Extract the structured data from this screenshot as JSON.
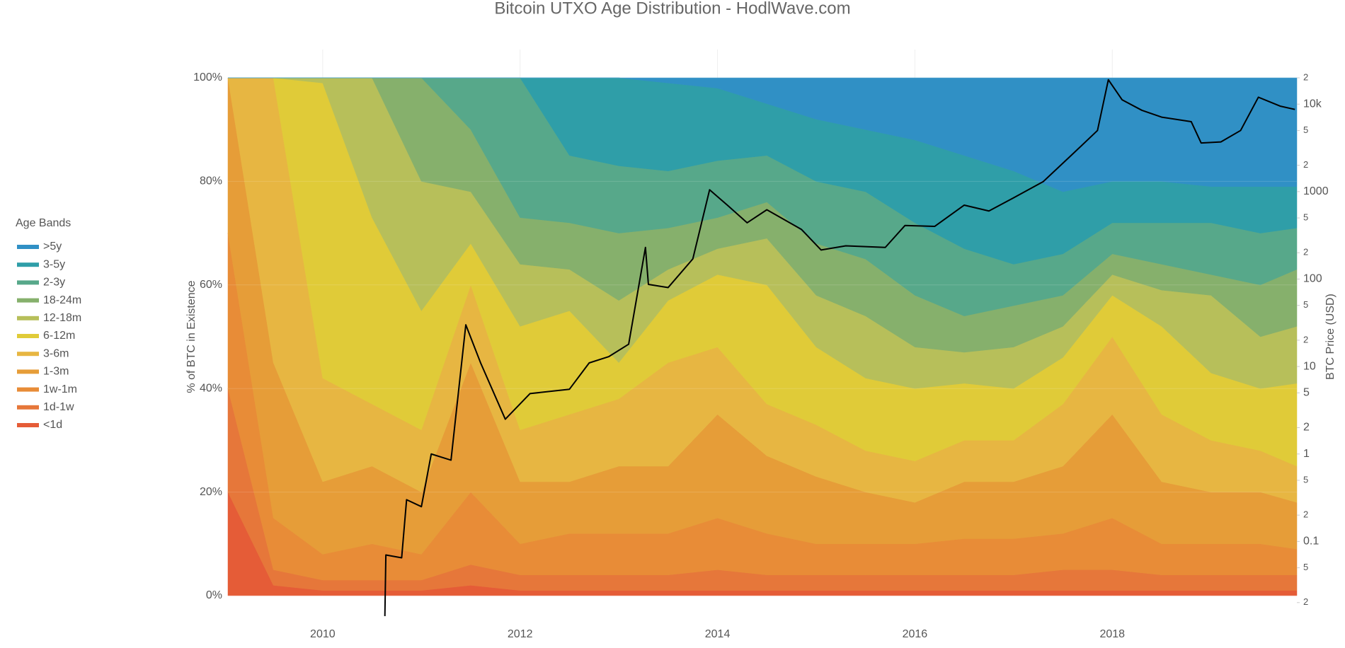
{
  "chart_data": {
    "type": "stacked-area",
    "title": "Bitcoin UTXO Age Distribution - HodlWave.com",
    "ylabel": "% of BTC in Existence",
    "y2label": "BTC Price (USD)",
    "legend_title": "Age Bands",
    "legend": "left",
    "grid": true,
    "x": [
      2009.04,
      2009.5,
      2010.0,
      2010.5,
      2011.0,
      2011.5,
      2012.0,
      2012.5,
      2013.0,
      2013.5,
      2014.0,
      2014.5,
      2015.0,
      2015.5,
      2016.0,
      2016.5,
      2017.0,
      2017.5,
      2018.0,
      2018.5,
      2019.0,
      2019.5,
      2019.87
    ],
    "xlim": [
      2009.04,
      2019.87
    ],
    "xticks": [
      2010,
      2012,
      2014,
      2016,
      2018
    ],
    "ylim": [
      0,
      100
    ],
    "yticks": [
      {
        "value": 0,
        "label": "0%"
      },
      {
        "value": 20,
        "label": "20%"
      },
      {
        "value": 40,
        "label": "40%"
      },
      {
        "value": 60,
        "label": "60%"
      },
      {
        "value": 80,
        "label": "80%"
      },
      {
        "value": 100,
        "label": "100%"
      }
    ],
    "y2log": true,
    "y2lim": [
      0.024,
      20000
    ],
    "y2ticks": [
      {
        "value": 0.02,
        "label": "2"
      },
      {
        "value": 0.05,
        "label": "5"
      },
      0.1,
      {
        "value": 0.2,
        "label": "2"
      },
      {
        "value": 0.5,
        "label": "5"
      },
      1,
      2,
      5,
      10,
      {
        "value": 20,
        "label": "2"
      },
      {
        "value": 50,
        "label": "5"
      },
      100,
      {
        "value": 200,
        "label": "2"
      },
      {
        "value": 500,
        "label": "5"
      },
      1000,
      {
        "value": 2000,
        "label": "2"
      },
      {
        "value": 5000,
        "label": "5"
      },
      {
        "value": 10000,
        "label": "10k"
      },
      {
        "value": 20000,
        "label": "2"
      }
    ],
    "series": [
      {
        "name": "<1d",
        "type": "area",
        "color": "#e55c37",
        "values": [
          20,
          2,
          1,
          1,
          1,
          2,
          1,
          1,
          1,
          1,
          1,
          1,
          1,
          1,
          1,
          1,
          1,
          1,
          1,
          1,
          1,
          1,
          1
        ]
      },
      {
        "name": "1d-1w",
        "type": "area",
        "color": "#e6773a",
        "values": [
          20,
          3,
          2,
          2,
          2,
          4,
          3,
          3,
          3,
          3,
          4,
          3,
          3,
          3,
          3,
          3,
          3,
          4,
          4,
          3,
          3,
          3,
          3
        ]
      },
      {
        "name": "1w-1m",
        "type": "area",
        "color": "#e88c37",
        "values": [
          30,
          10,
          5,
          7,
          5,
          14,
          6,
          8,
          8,
          8,
          10,
          8,
          6,
          6,
          6,
          7,
          7,
          7,
          10,
          6,
          6,
          6,
          5
        ]
      },
      {
        "name": "1-3m",
        "type": "area",
        "color": "#e69d38",
        "values": [
          30,
          30,
          14,
          15,
          12,
          25,
          12,
          10,
          13,
          13,
          20,
          15,
          13,
          10,
          8,
          11,
          11,
          13,
          20,
          12,
          10,
          10,
          9
        ]
      },
      {
        "name": "3-6m",
        "type": "area",
        "color": "#e7b642",
        "values": [
          0,
          55,
          20,
          12,
          12,
          15,
          10,
          13,
          13,
          20,
          13,
          10,
          10,
          8,
          8,
          8,
          8,
          12,
          15,
          13,
          10,
          8,
          7
        ]
      },
      {
        "name": "6-12m",
        "type": "area",
        "color": "#e0cb38",
        "values": [
          0,
          0,
          57,
          36,
          23,
          8,
          20,
          20,
          7,
          12,
          14,
          23,
          15,
          14,
          14,
          11,
          10,
          9,
          8,
          17,
          13,
          12,
          16
        ]
      },
      {
        "name": "12-18m",
        "type": "area",
        "color": "#b7bf5a",
        "values": [
          0,
          0,
          1,
          27,
          25,
          10,
          12,
          8,
          12,
          6,
          5,
          9,
          10,
          12,
          8,
          6,
          8,
          6,
          4,
          7,
          15,
          10,
          11
        ]
      },
      {
        "name": "18-24m",
        "type": "area",
        "color": "#86b06c",
        "values": [
          0,
          0,
          0,
          0,
          20,
          12,
          9,
          9,
          13,
          8,
          6,
          7,
          10,
          11,
          10,
          7,
          8,
          6,
          4,
          5,
          4,
          10,
          11
        ]
      },
      {
        "name": "2-3y",
        "type": "area",
        "color": "#57a88a",
        "values": [
          0,
          0,
          0,
          0,
          0,
          10,
          27,
          13,
          13,
          11,
          11,
          9,
          12,
          13,
          14,
          13,
          8,
          8,
          6,
          8,
          10,
          10,
          8
        ]
      },
      {
        "name": "3-5y",
        "type": "area",
        "color": "#2f9ea8",
        "values": [
          0,
          0,
          0,
          0,
          0,
          0,
          0,
          15,
          17,
          17,
          14,
          10,
          12,
          12,
          16,
          18,
          18,
          12,
          8,
          8,
          7,
          9,
          8
        ]
      },
      {
        "name": ">5y",
        "type": "area",
        "color": "#3090c5",
        "values": [
          0,
          0,
          0,
          0,
          0,
          0,
          0,
          0,
          0,
          1,
          2,
          5,
          8,
          10,
          12,
          15,
          18,
          22,
          20,
          20,
          21,
          21,
          21
        ]
      },
      {
        "type": "line",
        "axis": "y2",
        "color": "#000000",
        "x": [
          2010.63,
          2010.64,
          2010.8,
          2010.85,
          2011.0,
          2011.1,
          2011.3,
          2011.45,
          2011.6,
          2011.85,
          2012.1,
          2012.5,
          2012.7,
          2012.9,
          2013.1,
          2013.27,
          2013.3,
          2013.5,
          2013.75,
          2013.92,
          2014.1,
          2014.3,
          2014.5,
          2014.85,
          2015.05,
          2015.3,
          2015.7,
          2015.9,
          2016.2,
          2016.5,
          2016.75,
          2017.0,
          2017.3,
          2017.6,
          2017.85,
          2017.96,
          2018.1,
          2018.3,
          2018.5,
          2018.8,
          2018.9,
          2019.1,
          2019.3,
          2019.48,
          2019.7,
          2019.85
        ],
        "values": [
          0.014,
          0.07,
          0.065,
          0.3,
          0.25,
          1,
          0.85,
          30,
          11,
          2.5,
          4.9,
          5.5,
          11,
          13,
          18,
          230,
          87,
          80,
          170,
          1050,
          700,
          440,
          620,
          370,
          215,
          240,
          230,
          410,
          400,
          700,
          600,
          850,
          1300,
          2700,
          5000,
          19000,
          11200,
          8500,
          7100,
          6300,
          3600,
          3700,
          5000,
          12000,
          9500,
          8700
        ]
      }
    ]
  }
}
